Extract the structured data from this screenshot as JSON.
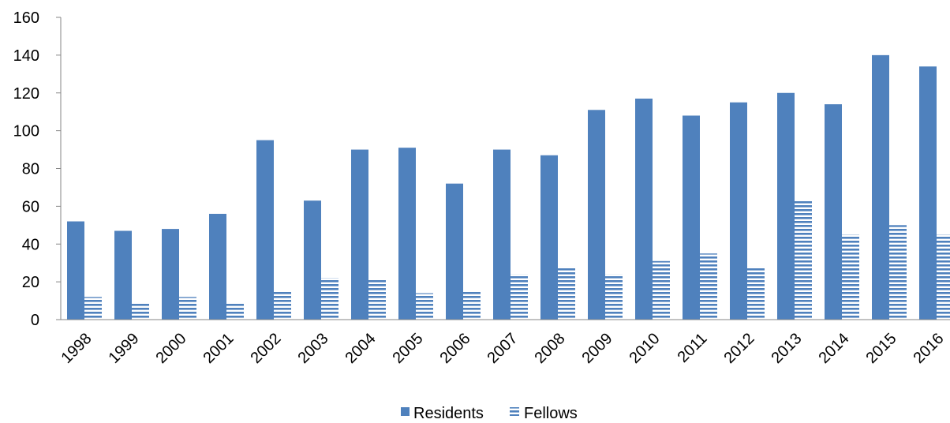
{
  "chart_data": {
    "type": "bar",
    "categories": [
      "1998",
      "1999",
      "2000",
      "2001",
      "2002",
      "2003",
      "2004",
      "2005",
      "2006",
      "2007",
      "2008",
      "2009",
      "2010",
      "2011",
      "2012",
      "2013",
      "2014",
      "2015",
      "2016"
    ],
    "series": [
      {
        "name": "Residents",
        "color": "#4f81bd",
        "pattern": "solid",
        "values": [
          52,
          47,
          48,
          56,
          95,
          63,
          90,
          91,
          72,
          90,
          87,
          111,
          117,
          108,
          115,
          120,
          114,
          140,
          134
        ]
      },
      {
        "name": "Fellows",
        "color": "#4f81bd",
        "pattern": "horizontal-stripes",
        "values": [
          12,
          9,
          12,
          9,
          15,
          22,
          21,
          14,
          15,
          24,
          28,
          24,
          31,
          35,
          28,
          63,
          45,
          50,
          45
        ]
      }
    ],
    "title": "",
    "xlabel": "",
    "ylabel": "",
    "ylim": [
      0,
      160
    ],
    "yticks": [
      0,
      20,
      40,
      60,
      80,
      100,
      120,
      140,
      160
    ],
    "grid": false,
    "legend_position": "bottom"
  }
}
